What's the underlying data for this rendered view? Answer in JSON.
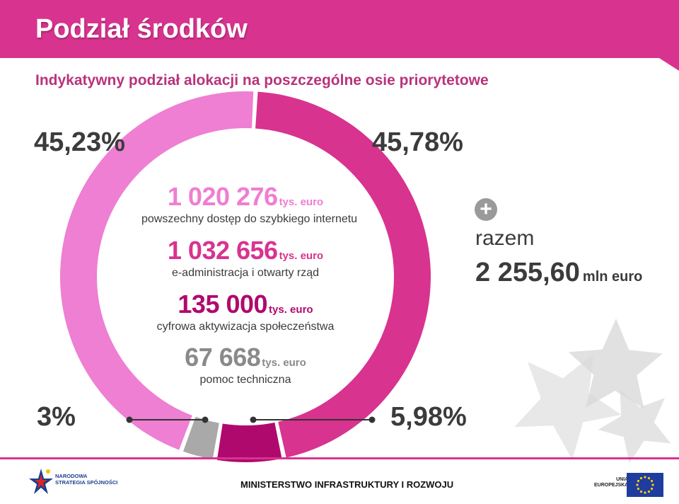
{
  "header": {
    "title": "Podział środków",
    "subtitle": "Indykatywny podział alokacji na poszczególne osie priorytetowe"
  },
  "chart_data": {
    "type": "pie",
    "unit": "tys. euro",
    "slices": [
      {
        "label": "powszechny dostęp do szybkiego internetu",
        "value": 1020276,
        "percent": "45,23%",
        "color": "#ee7fd2"
      },
      {
        "label": "e-administracja i otwarty rząd",
        "value": 1032656,
        "percent": "45,78%",
        "color": "#d8338f"
      },
      {
        "label": "cyfrowa aktywizacja społeczeństwa",
        "value": 135000,
        "percent": "5,98%",
        "color": "#b0096e"
      },
      {
        "label": "pomoc techniczna",
        "value": 67668,
        "percent": "3%",
        "color": "#a9a9a9"
      }
    ]
  },
  "center": [
    {
      "amount": "1 020 276",
      "unit": "tys. euro",
      "desc": "powszechny dostęp do szybkiego internetu",
      "color": "#ee7fd2"
    },
    {
      "amount": "1 032 656",
      "unit": "tys. euro",
      "desc": "e-administracja i otwarty rząd",
      "color": "#d8338f"
    },
    {
      "amount": "135 000",
      "unit": "tys. euro",
      "desc": "cyfrowa aktywizacja społeczeństwa",
      "color": "#b0096e"
    },
    {
      "amount": "67 668",
      "unit": "tys. euro",
      "desc": "pomoc techniczna",
      "color": "#8a8a8a"
    }
  ],
  "percent_labels": {
    "top_left": "45,23%",
    "top_right": "45,78%",
    "bottom_left": "3%",
    "bottom_right": "5,98%"
  },
  "total": {
    "icon": "plus-icon",
    "label": "razem",
    "value": "2 255,60",
    "unit": "mln euro"
  },
  "footer": {
    "left_logo_text": "NARODOWA\nSTRATEGIA SPÓJNOŚCI",
    "ministry": "MINISTERSTWO INFRASTRUKTURY I ROZWOJU",
    "right_logo_text": "UNIA\nEUROPEJSKA"
  },
  "colors": {
    "brand": "#d8338f",
    "text_dark": "#3b3b3b"
  }
}
